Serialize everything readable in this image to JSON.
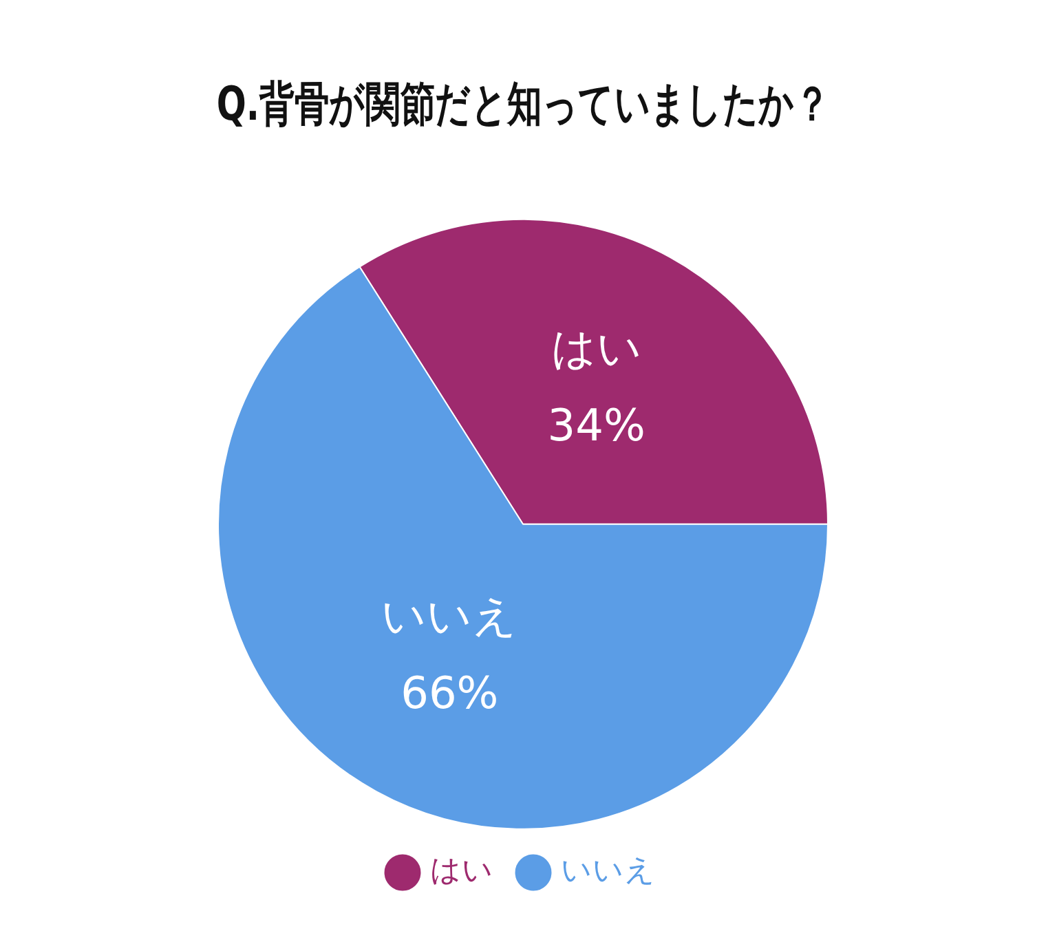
{
  "chart_data": {
    "type": "pie",
    "title": "Q.背骨が関節だと知っていましたか？",
    "categories": [
      "はい",
      "いいえ"
    ],
    "values": [
      34,
      66
    ],
    "value_labels": [
      "34%",
      "66%"
    ],
    "colors": [
      "#9e2a6e",
      "#5b9de6"
    ],
    "legend": "bottom"
  }
}
